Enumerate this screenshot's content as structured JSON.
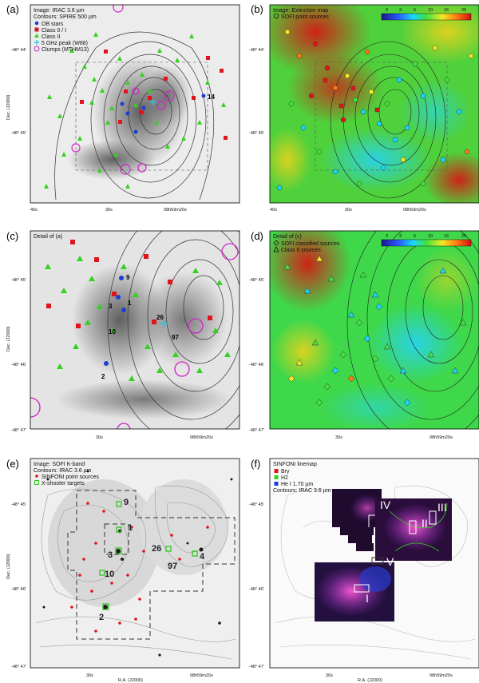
{
  "panels": [
    {
      "label": "(a)",
      "legend_lines": [
        "Image: IRAC 3.6 µm",
        "Contours: SPIRE 500 µm"
      ],
      "legend_entries": [
        "OB stars",
        "Class 0 / I",
        "Class II",
        "5 GHz peak (W88)",
        "Clumps (MTHM13)"
      ],
      "xticks": [
        "40s",
        "30s",
        "08h59m20s"
      ],
      "yticks": [
        "-48° 44'",
        "-48° 45'"
      ],
      "ylabel": "Dec. (J2000)",
      "numbers": [
        "14"
      ]
    },
    {
      "label": "(b)",
      "legend_lines": [
        "Image: Extinction map"
      ],
      "legend_entries": [
        "SOFI point sources"
      ],
      "colorbar_ticks": [
        "0",
        "3",
        "5",
        "10",
        "16",
        "20"
      ],
      "xticks": [
        "40s",
        "30s",
        "08h59m20s"
      ],
      "yticks": [
        "-48° 44'",
        "-48° 45'"
      ]
    },
    {
      "label": "(c)",
      "legend_lines": [
        "Detail of (a)"
      ],
      "xticks": [
        "30s",
        "08h59m20s"
      ],
      "yticks": [
        "-48° 45'",
        "-48° 46'",
        "-48° 47'"
      ],
      "ylabel": "Dec. (J2000)",
      "numbers": [
        "9",
        "1",
        "3",
        "10",
        "26",
        "97",
        "2"
      ]
    },
    {
      "label": "(d)",
      "legend_lines": [
        "Detail of (c)"
      ],
      "legend_entries": [
        "SOFI classified sources",
        "Class II sources"
      ],
      "colorbar_ticks": [
        "0",
        "3",
        "5",
        "10",
        "16",
        "20"
      ],
      "xticks": [
        "30s",
        "08h59m20s"
      ],
      "yticks": [
        "-48° 45'",
        "-48° 46'",
        "-48° 47'"
      ]
    },
    {
      "label": "(e)",
      "legend_lines": [
        "Image: SOFI K-band",
        "Contours: IRAC 3.6 µm"
      ],
      "legend_entries": [
        "SINFONI point sources",
        "X-shooter targets"
      ],
      "xticks": [
        "30s",
        "08h59m20s"
      ],
      "yticks": [
        "-48° 45'",
        "-48° 46'",
        "-48° 47'"
      ],
      "xlabel": "R.A. (J2000)",
      "ylabel": "Dec. (J2000)",
      "numbers": [
        "9",
        "1",
        "3",
        "10",
        "2",
        "26",
        "4",
        "97"
      ]
    },
    {
      "label": "(f)",
      "legend_lines": [
        "SINFONI linemap",
        "Contours: IRAC 3.6 µm"
      ],
      "legend_entries": [
        "Brγ",
        "H2",
        "He I 1.70 µm"
      ],
      "xticks": [
        "30s",
        "08h59m20s"
      ],
      "yticks": [
        "-48° 45'",
        "-48° 46'",
        "-48° 47'"
      ],
      "xlabel": "R.A. (J2000)",
      "regions": [
        "IV",
        "III",
        "II",
        "V",
        "I"
      ]
    }
  ],
  "colors": {
    "ob": "#1b3fd6",
    "class0": "#e0141c",
    "class2": "#34d11e",
    "peak": "#21c7e8",
    "clump": "#d023c9"
  }
}
